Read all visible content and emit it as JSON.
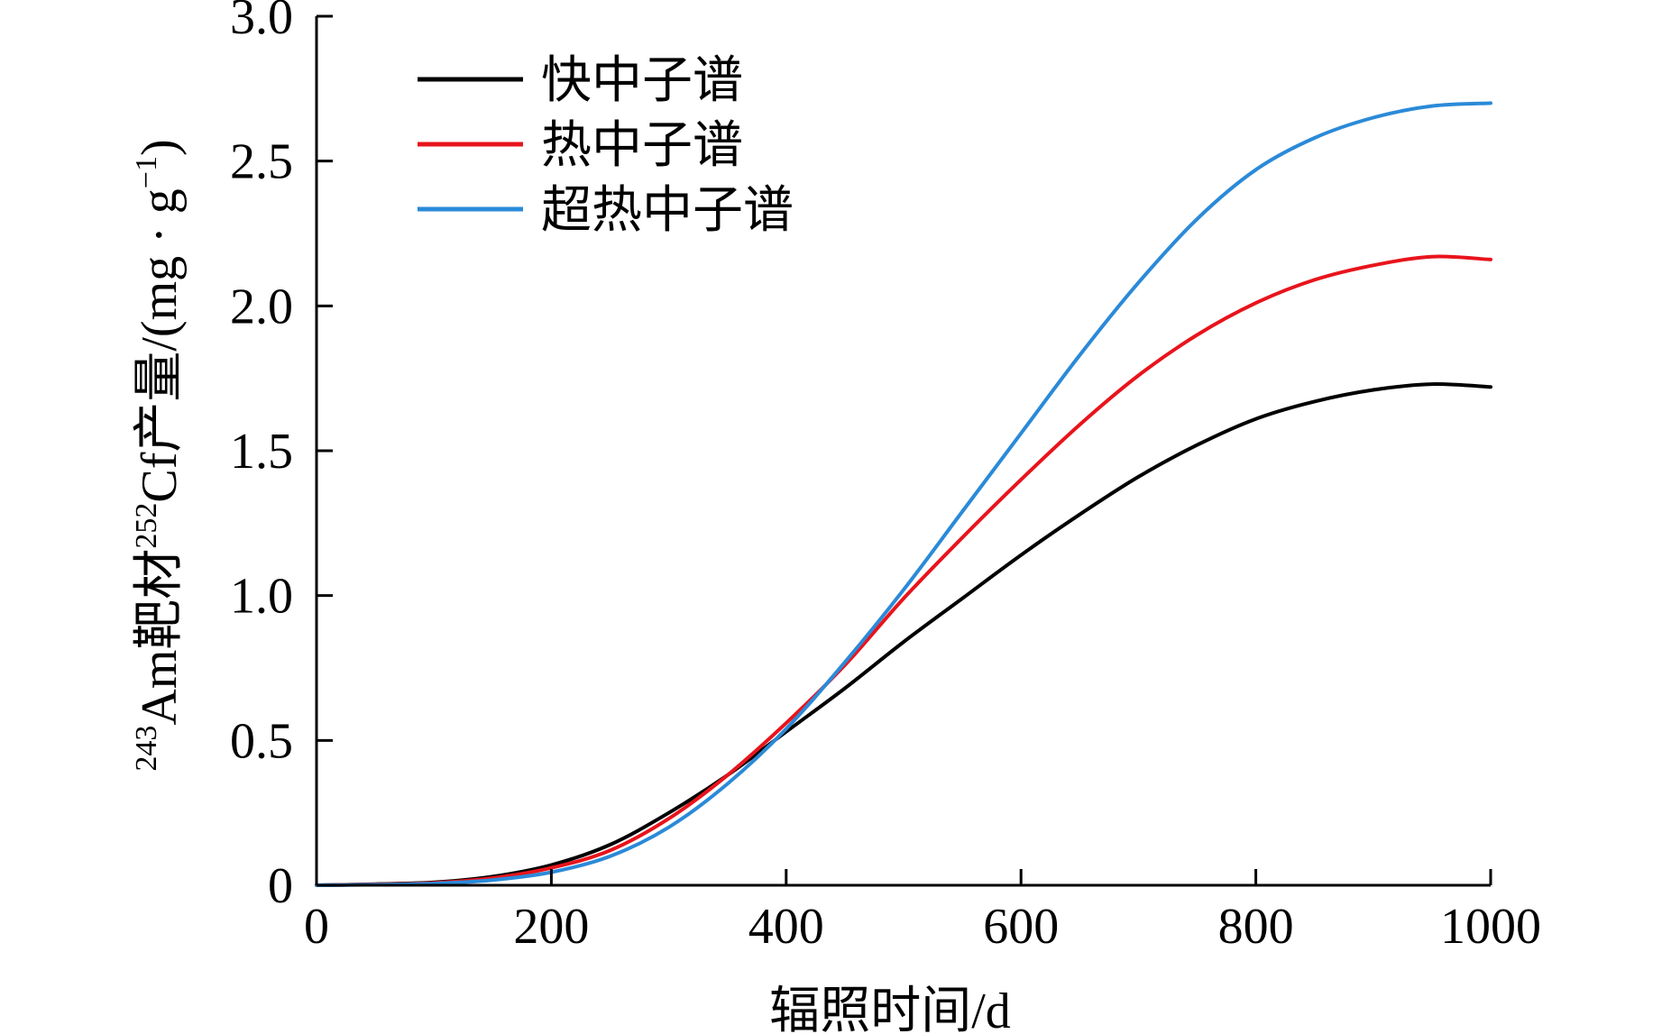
{
  "chart_data": {
    "type": "line",
    "xlabel": "辐照时间/d",
    "ylabel": {
      "iso1": "243",
      "part1": "Am靶材",
      "iso2": "252",
      "part2": "Cf产量/(mg · g",
      "exp": "−1",
      "part3": ")"
    },
    "xlim": [
      0,
      1000
    ],
    "ylim": [
      0,
      3.0
    ],
    "x_ticks": [
      0,
      200,
      400,
      600,
      800,
      1000
    ],
    "x_tick_labels": [
      "0",
      "200",
      "400",
      "600",
      "800",
      "1000"
    ],
    "y_ticks": [
      0,
      0.5,
      1.0,
      1.5,
      2.0,
      2.5,
      3.0
    ],
    "y_tick_labels": [
      "0",
      "0.5",
      "1.0",
      "1.5",
      "2.0",
      "2.5",
      "3.0"
    ],
    "grid": false,
    "legend_position": "top-left",
    "x": [
      0,
      50,
      100,
      150,
      200,
      250,
      300,
      350,
      400,
      450,
      500,
      550,
      600,
      650,
      700,
      750,
      800,
      850,
      900,
      950,
      1000
    ],
    "series": [
      {
        "name": "快中子谱",
        "color": "#000000",
        "values": [
          0.0,
          0.004,
          0.01,
          0.03,
          0.07,
          0.14,
          0.25,
          0.38,
          0.53,
          0.68,
          0.84,
          0.99,
          1.14,
          1.28,
          1.41,
          1.52,
          1.61,
          1.67,
          1.71,
          1.73,
          1.72
        ]
      },
      {
        "name": "热中子谱",
        "color": "#e8141c",
        "values": [
          0.0,
          0.003,
          0.008,
          0.025,
          0.06,
          0.12,
          0.23,
          0.38,
          0.56,
          0.76,
          0.99,
          1.2,
          1.4,
          1.59,
          1.76,
          1.9,
          2.01,
          2.09,
          2.14,
          2.17,
          2.16
        ]
      },
      {
        "name": "超热中子谱",
        "color": "#2b8ad8",
        "values": [
          0.0,
          0.002,
          0.006,
          0.018,
          0.045,
          0.1,
          0.2,
          0.35,
          0.54,
          0.77,
          1.02,
          1.29,
          1.56,
          1.83,
          2.08,
          2.3,
          2.47,
          2.58,
          2.65,
          2.69,
          2.7
        ]
      }
    ]
  }
}
